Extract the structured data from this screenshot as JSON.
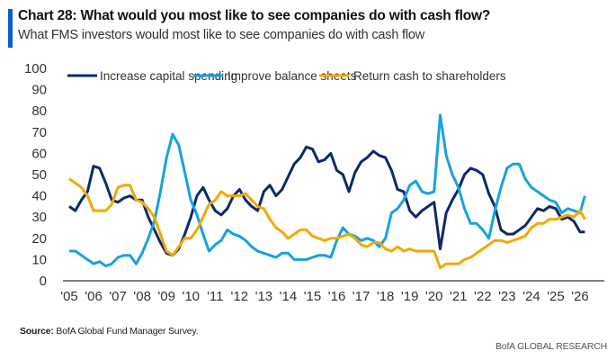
{
  "header": {
    "title": "Chart 28: What would you most like to see companies do with cash flow?",
    "subtitle": "What FMS investors would most like to see companies do with cash flow",
    "accent_color": "#0b5bd3"
  },
  "footer": {
    "source_label": "Source:",
    "source_text": " BofA Global Fund Manager Survey.",
    "brand": "BofA GLOBAL RESEARCH"
  },
  "chart_data": {
    "type": "line",
    "title": "Chart 28: What would you most like to see companies do with cash flow?",
    "subtitle": "What FMS investors would most like to see companies do with cash flow",
    "xlabel": "",
    "ylabel": "",
    "ylim": [
      0,
      100
    ],
    "yticks": [
      0,
      10,
      20,
      30,
      40,
      50,
      60,
      70,
      80,
      90,
      100
    ],
    "xlim": [
      2005.0,
      2026.3
    ],
    "xtick_values": [
      2005,
      2006,
      2007,
      2008,
      2009,
      2010,
      2011,
      2012,
      2013,
      2014,
      2015,
      2016,
      2017,
      2018,
      2019,
      2020,
      2021,
      2022,
      2023,
      2024,
      2025,
      2026
    ],
    "xtick_labels": [
      "'05",
      "'06",
      "'07",
      "'08",
      "'09",
      "'10",
      "'11",
      "'12",
      "'13",
      "'14",
      "'15",
      "'16",
      "'17",
      "'18",
      "'19",
      "'20",
      "'21",
      "'22",
      "'23",
      "'24",
      "'25",
      "'26"
    ],
    "grid": false,
    "legend_position": "top",
    "x": [
      2005.0,
      2005.25,
      2005.5,
      2005.75,
      2006.0,
      2006.25,
      2006.5,
      2006.75,
      2007.0,
      2007.25,
      2007.5,
      2007.75,
      2008.0,
      2008.25,
      2008.5,
      2008.75,
      2009.0,
      2009.25,
      2009.5,
      2009.75,
      2010.0,
      2010.25,
      2010.5,
      2010.75,
      2011.0,
      2011.25,
      2011.5,
      2011.75,
      2012.0,
      2012.25,
      2012.5,
      2012.75,
      2013.0,
      2013.25,
      2013.5,
      2013.75,
      2014.0,
      2014.25,
      2014.5,
      2014.75,
      2015.0,
      2015.25,
      2015.5,
      2015.75,
      2016.0,
      2016.25,
      2016.5,
      2016.75,
      2017.0,
      2017.25,
      2017.5,
      2017.75,
      2018.0,
      2018.25,
      2018.5,
      2018.75,
      2019.0,
      2019.25,
      2019.5,
      2019.75,
      2020.0,
      2020.25,
      2020.5,
      2020.75,
      2021.0,
      2021.25,
      2021.5,
      2021.75,
      2022.0,
      2022.25,
      2022.5,
      2022.75,
      2023.0,
      2023.25,
      2023.5,
      2023.75,
      2024.0,
      2024.25,
      2024.5,
      2024.75,
      2025.0,
      2025.25,
      2025.5,
      2025.75,
      2026.0,
      2026.2
    ],
    "series": [
      {
        "name": "Increase capital spending",
        "color": "#0a2a6b",
        "values": [
          35,
          33,
          38,
          42,
          54,
          53,
          46,
          38,
          37,
          39,
          40,
          38,
          38,
          30,
          24,
          18,
          13,
          12,
          15,
          22,
          30,
          40,
          44,
          38,
          33,
          31,
          34,
          40,
          43,
          38,
          35,
          33,
          42,
          45,
          40,
          43,
          49,
          55,
          58,
          63,
          62,
          56,
          57,
          60,
          52,
          50,
          42,
          51,
          56,
          58,
          61,
          59,
          58,
          52,
          43,
          42,
          33,
          30,
          33,
          35,
          37,
          15,
          32,
          38,
          43,
          50,
          53,
          52,
          50,
          41,
          35,
          24,
          22,
          22,
          24,
          26,
          30,
          34,
          33,
          35,
          34,
          29,
          30,
          28,
          23,
          23
        ]
      },
      {
        "name": "Improve balance sheets",
        "color": "#17a2e0",
        "values": [
          14,
          14,
          12,
          10,
          8,
          9,
          7,
          8,
          11,
          12,
          12,
          8,
          13,
          20,
          28,
          42,
          58,
          69,
          64,
          51,
          38,
          31,
          22,
          14,
          17,
          19,
          24,
          22,
          21,
          19,
          16,
          14,
          13,
          12,
          11,
          13,
          13,
          10,
          10,
          10,
          11,
          12,
          12,
          11,
          19,
          25,
          22,
          21,
          19,
          20,
          19,
          16,
          20,
          32,
          34,
          38,
          45,
          47,
          42,
          41,
          42,
          78,
          59,
          50,
          44,
          34,
          27,
          27,
          24,
          20,
          33,
          44,
          53,
          55,
          55,
          48,
          44,
          42,
          40,
          38,
          37,
          32,
          34,
          33,
          32,
          40
        ]
      },
      {
        "name": "Return cash to shareholders",
        "color": "#f2a900",
        "values": [
          48,
          46,
          44,
          40,
          33,
          33,
          33,
          36,
          44,
          45,
          45,
          38,
          37,
          34,
          30,
          22,
          14,
          12,
          16,
          20,
          20,
          24,
          30,
          36,
          38,
          42,
          40,
          40,
          40,
          41,
          38,
          35,
          34,
          29,
          25,
          23,
          20,
          22,
          24,
          24,
          21,
          20,
          19,
          20,
          20,
          21,
          22,
          20,
          17,
          16,
          18,
          18,
          15,
          14,
          16,
          14,
          15,
          14,
          14,
          14,
          14,
          6,
          8,
          8,
          8,
          10,
          11,
          13,
          15,
          17,
          19,
          19,
          18,
          19,
          20,
          21,
          25,
          27,
          27,
          29,
          29,
          30,
          31,
          30,
          33,
          29
        ]
      }
    ]
  }
}
